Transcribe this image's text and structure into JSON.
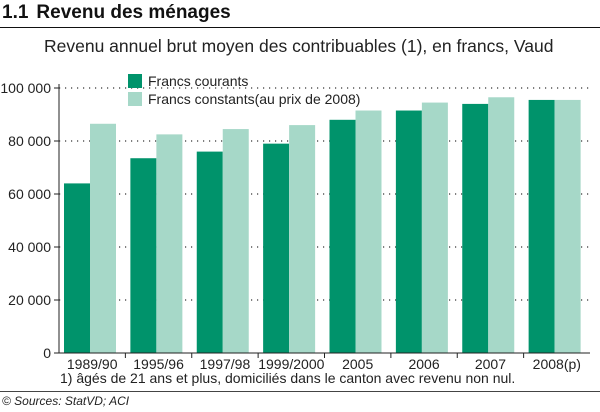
{
  "header": {
    "number": "1.1",
    "title": "Revenu des ménages"
  },
  "chart_data": {
    "type": "bar",
    "title": "Revenu annuel brut moyen des contribuables (1), en francs, Vaud",
    "xlabel": "",
    "ylabel": "",
    "ylim": [
      0,
      100000
    ],
    "yticks": [
      0,
      20000,
      40000,
      60000,
      80000,
      100000
    ],
    "ytick_labels": [
      "0",
      "20 000",
      "40 000",
      "60 000",
      "80 000",
      "100 000"
    ],
    "grid": true,
    "legend_position": "top-left",
    "categories": [
      "1989/90",
      "1995/96",
      "1997/98",
      "1999/2000",
      "2005",
      "2006",
      "2007",
      "2008(p)"
    ],
    "series": [
      {
        "name": "Francs courants",
        "color": "#00936b",
        "values": [
          64000,
          73500,
          76000,
          79000,
          88000,
          91500,
          94000,
          95500
        ]
      },
      {
        "name": "Francs constants(au prix de 2008)",
        "color": "#a6d8c8",
        "values": [
          86500,
          82500,
          84500,
          86000,
          91500,
          94500,
          96500,
          95500
        ]
      }
    ]
  },
  "footnote": "1) âgés de 21 ans et plus, domiciliés dans le canton avec revenu non nul.",
  "source": "© Sources: StatVD; ACI"
}
